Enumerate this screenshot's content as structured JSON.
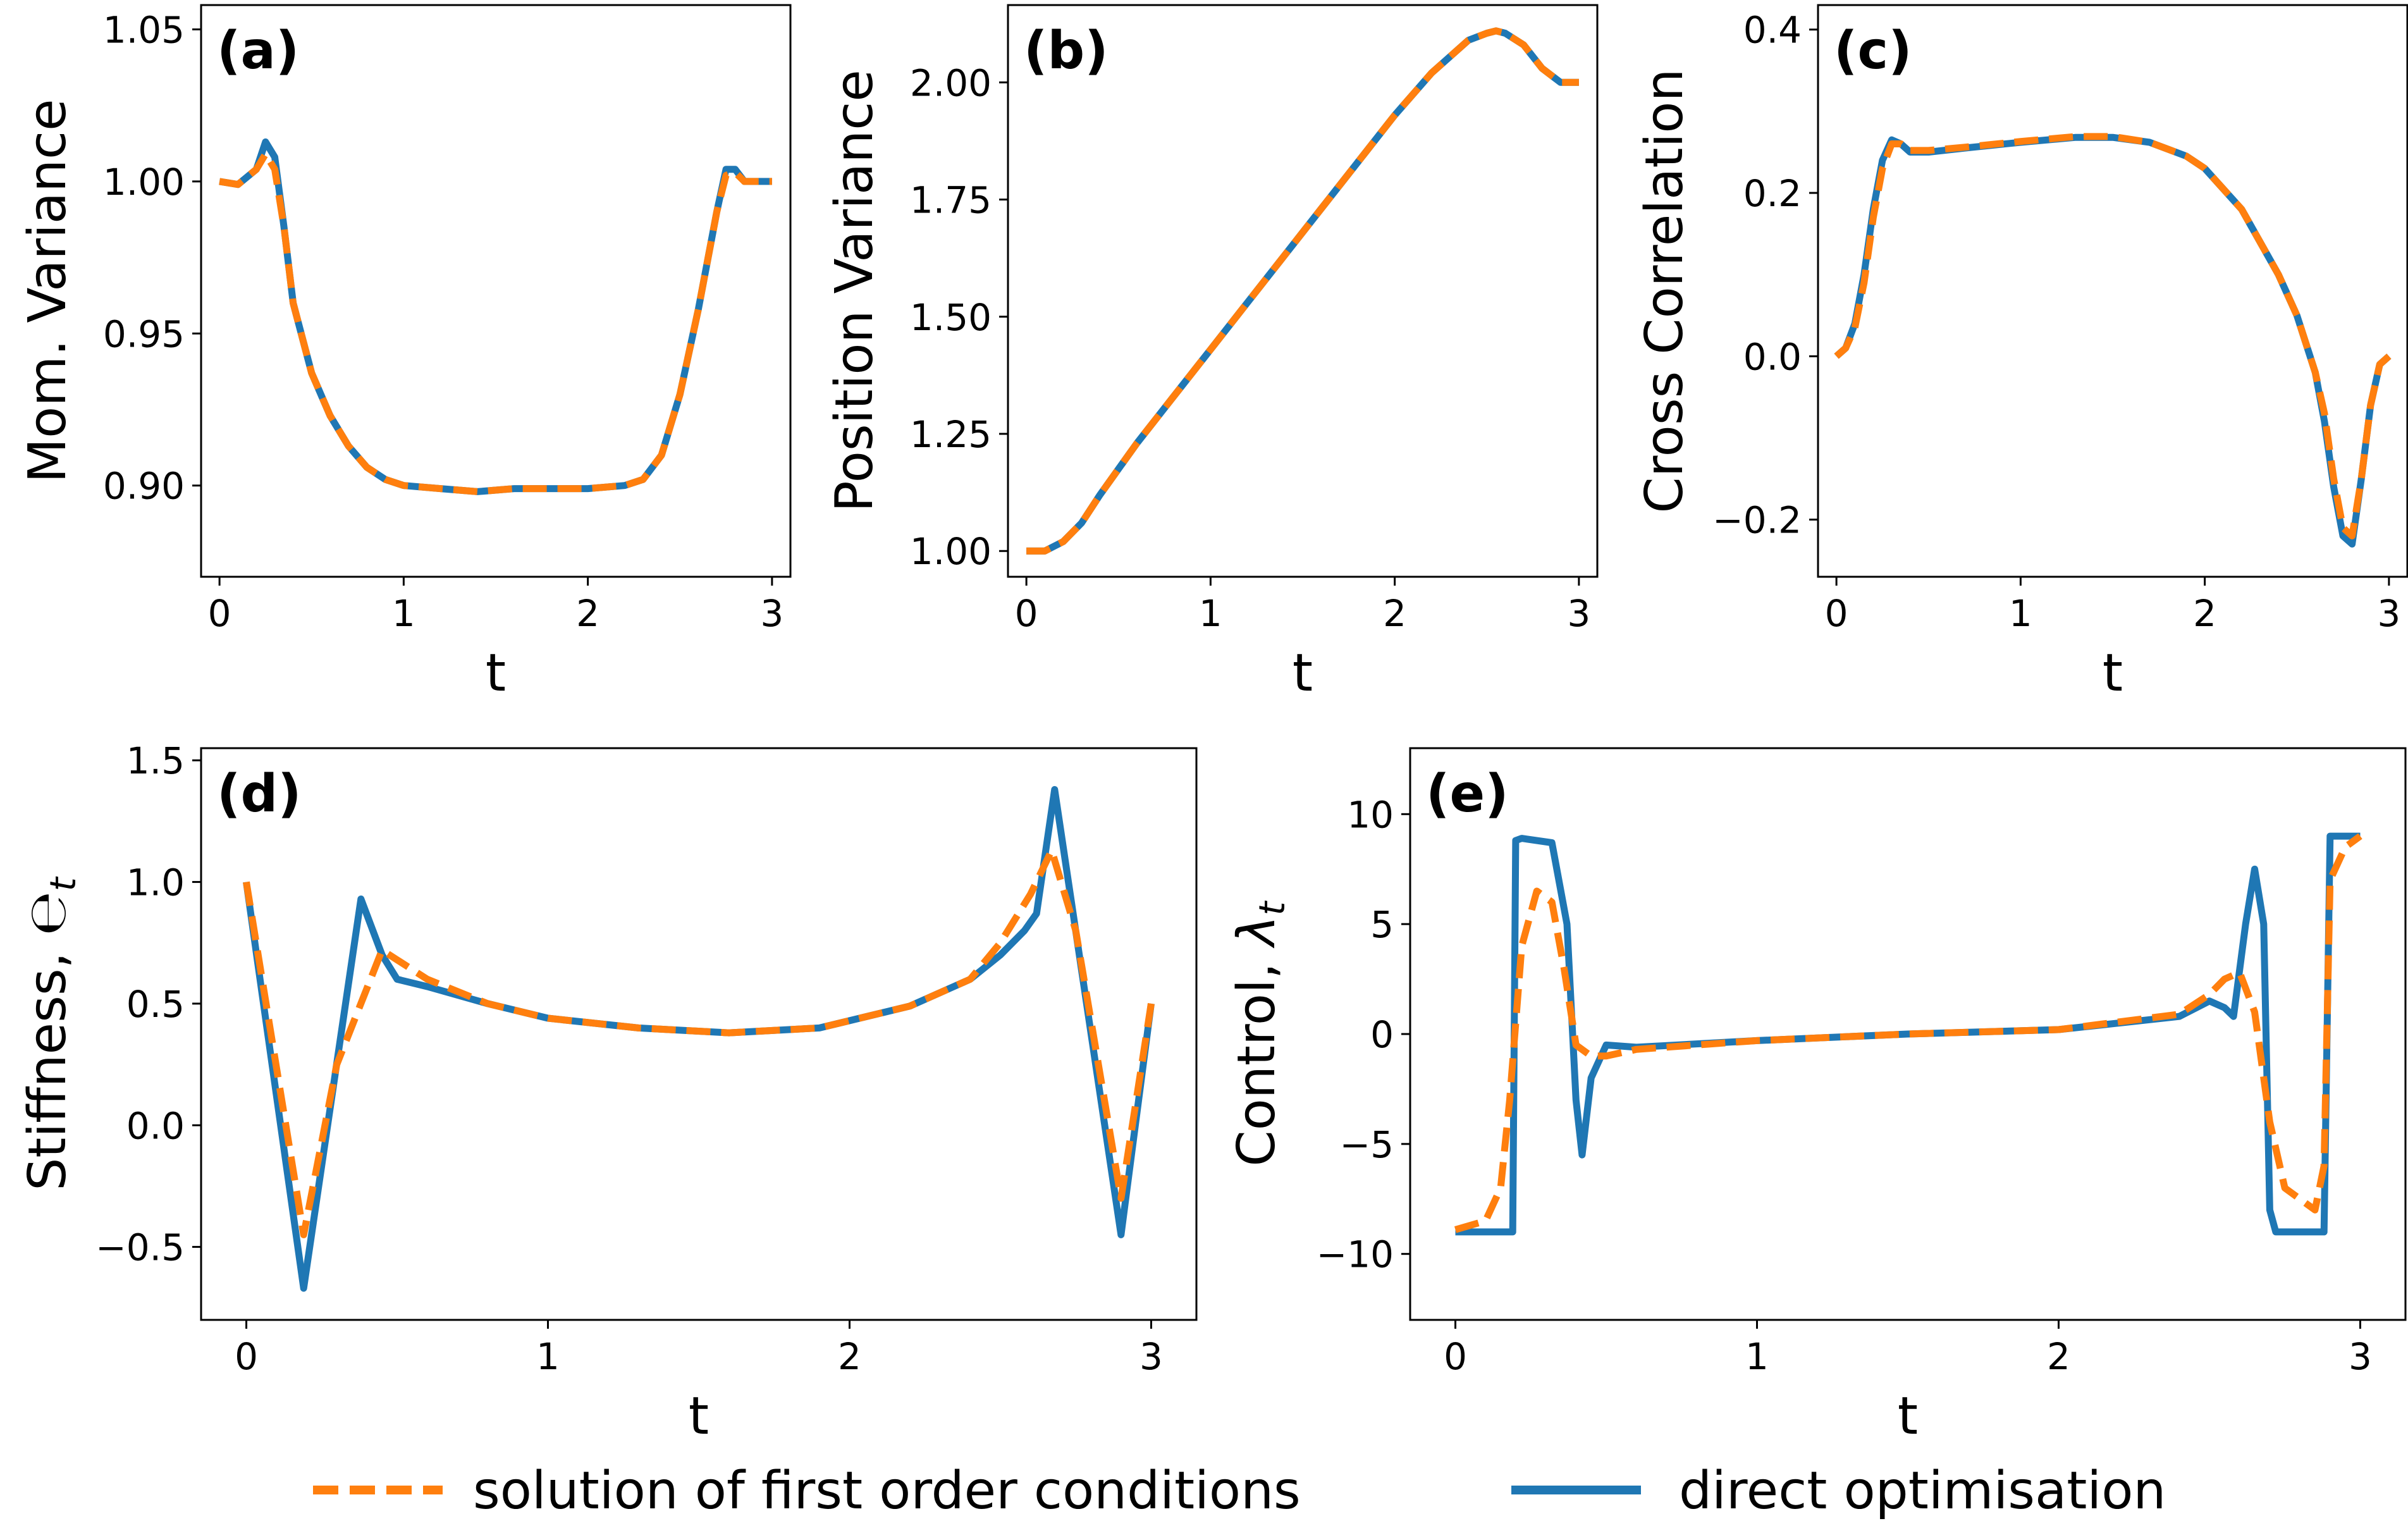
{
  "colors": {
    "dashed": "#ff7f0e",
    "solid": "#1f77b4"
  },
  "legend": {
    "dashed_label": "solution of first order conditions",
    "solid_label": "direct optimisation"
  },
  "chart_data": [
    {
      "type": "line",
      "panel": "(a)",
      "xlabel": "t",
      "ylabel": "Mom. Variance",
      "xlim": [
        -0.1,
        3.1
      ],
      "ylim": [
        0.87,
        1.058
      ],
      "xticks": [
        0,
        1,
        2,
        3
      ],
      "xtick_labels": [
        "0",
        "1",
        "2",
        "3"
      ],
      "yticks": [
        0.9,
        0.95,
        1.0,
        1.05
      ],
      "ytick_labels": [
        "0.90",
        "0.95",
        "1.00",
        "1.05"
      ],
      "series": [
        {
          "name": "direct optimisation",
          "style": "solid",
          "x": [
            0,
            0.1,
            0.2,
            0.25,
            0.3,
            0.35,
            0.4,
            0.5,
            0.6,
            0.7,
            0.8,
            0.9,
            1.0,
            1.2,
            1.4,
            1.6,
            1.8,
            2.0,
            2.2,
            2.3,
            2.4,
            2.5,
            2.6,
            2.7,
            2.75,
            2.8,
            2.85,
            2.9,
            2.95,
            3.0
          ],
          "y": [
            1.0,
            0.999,
            1.004,
            1.013,
            1.008,
            0.985,
            0.96,
            0.937,
            0.923,
            0.913,
            0.906,
            0.902,
            0.9,
            0.899,
            0.898,
            0.899,
            0.899,
            0.899,
            0.9,
            0.902,
            0.91,
            0.93,
            0.958,
            0.99,
            1.004,
            1.004,
            1.0,
            1.0,
            1.0,
            1.0
          ]
        },
        {
          "name": "solution of first order conditions",
          "style": "dashed",
          "x": [
            0,
            0.1,
            0.2,
            0.25,
            0.3,
            0.35,
            0.4,
            0.5,
            0.6,
            0.7,
            0.8,
            0.9,
            1.0,
            1.2,
            1.4,
            1.6,
            1.8,
            2.0,
            2.2,
            2.3,
            2.4,
            2.5,
            2.6,
            2.7,
            2.75,
            2.8,
            2.85,
            2.9,
            2.95,
            3.0
          ],
          "y": [
            1.0,
            0.999,
            1.004,
            1.009,
            1.004,
            0.985,
            0.96,
            0.937,
            0.923,
            0.913,
            0.906,
            0.902,
            0.9,
            0.899,
            0.898,
            0.899,
            0.899,
            0.899,
            0.9,
            0.902,
            0.91,
            0.93,
            0.958,
            0.99,
            1.002,
            1.003,
            1.0,
            1.0,
            1.0,
            1.0
          ]
        }
      ]
    },
    {
      "type": "line",
      "panel": "(b)",
      "xlabel": "t",
      "ylabel": "Position Variance",
      "xlim": [
        -0.1,
        3.1
      ],
      "ylim": [
        0.945,
        2.165
      ],
      "xticks": [
        0,
        1,
        2,
        3
      ],
      "xtick_labels": [
        "0",
        "1",
        "2",
        "3"
      ],
      "yticks": [
        1.0,
        1.25,
        1.5,
        1.75,
        2.0
      ],
      "ytick_labels": [
        "1.00",
        "1.25",
        "1.50",
        "1.75",
        "2.00"
      ],
      "series": [
        {
          "name": "direct optimisation",
          "style": "solid",
          "x": [
            0,
            0.1,
            0.2,
            0.3,
            0.4,
            0.6,
            0.8,
            1.0,
            1.2,
            1.4,
            1.6,
            1.8,
            2.0,
            2.2,
            2.4,
            2.5,
            2.55,
            2.6,
            2.7,
            2.8,
            2.9,
            3.0
          ],
          "y": [
            1.0,
            1.0,
            1.02,
            1.06,
            1.12,
            1.23,
            1.33,
            1.43,
            1.53,
            1.63,
            1.73,
            1.83,
            1.93,
            2.02,
            2.09,
            2.105,
            2.11,
            2.105,
            2.08,
            2.03,
            2.0,
            2.0
          ]
        },
        {
          "name": "solution of first order conditions",
          "style": "dashed",
          "x": [
            0,
            0.1,
            0.2,
            0.3,
            0.4,
            0.6,
            0.8,
            1.0,
            1.2,
            1.4,
            1.6,
            1.8,
            2.0,
            2.2,
            2.4,
            2.5,
            2.55,
            2.6,
            2.7,
            2.8,
            2.9,
            3.0
          ],
          "y": [
            1.0,
            1.0,
            1.02,
            1.06,
            1.12,
            1.23,
            1.33,
            1.43,
            1.53,
            1.63,
            1.73,
            1.83,
            1.93,
            2.02,
            2.09,
            2.105,
            2.11,
            2.105,
            2.08,
            2.03,
            2.0,
            2.0
          ]
        }
      ]
    },
    {
      "type": "line",
      "panel": "(c)",
      "xlabel": "t",
      "ylabel": "Cross Correlation",
      "xlim": [
        -0.1,
        3.1
      ],
      "ylim": [
        -0.27,
        0.43
      ],
      "xticks": [
        0,
        1,
        2,
        3
      ],
      "xtick_labels": [
        "0",
        "1",
        "2",
        "3"
      ],
      "yticks": [
        -0.2,
        0.0,
        0.2,
        0.4
      ],
      "ytick_labels": [
        "−0.2",
        "0.0",
        "0.2",
        "0.4"
      ],
      "series": [
        {
          "name": "direct optimisation",
          "style": "solid",
          "x": [
            0,
            0.05,
            0.1,
            0.15,
            0.2,
            0.25,
            0.3,
            0.35,
            0.4,
            0.5,
            0.7,
            1.0,
            1.3,
            1.5,
            1.7,
            1.9,
            2.0,
            2.2,
            2.4,
            2.5,
            2.6,
            2.65,
            2.7,
            2.75,
            2.8,
            2.85,
            2.9,
            2.95,
            3.0
          ],
          "y": [
            0.0,
            0.01,
            0.04,
            0.1,
            0.18,
            0.24,
            0.265,
            0.26,
            0.25,
            0.25,
            0.255,
            0.262,
            0.268,
            0.268,
            0.262,
            0.245,
            0.23,
            0.18,
            0.1,
            0.05,
            -0.02,
            -0.08,
            -0.16,
            -0.22,
            -0.23,
            -0.15,
            -0.06,
            -0.01,
            0.0
          ]
        },
        {
          "name": "solution of first order conditions",
          "style": "dashed",
          "x": [
            0,
            0.05,
            0.1,
            0.15,
            0.2,
            0.25,
            0.3,
            0.35,
            0.4,
            0.5,
            0.7,
            1.0,
            1.3,
            1.5,
            1.7,
            1.9,
            2.0,
            2.2,
            2.4,
            2.5,
            2.6,
            2.65,
            2.7,
            2.75,
            2.8,
            2.85,
            2.9,
            2.95,
            3.0
          ],
          "y": [
            0.0,
            0.01,
            0.035,
            0.09,
            0.17,
            0.23,
            0.26,
            0.26,
            0.252,
            0.252,
            0.256,
            0.263,
            0.269,
            0.269,
            0.262,
            0.245,
            0.23,
            0.18,
            0.1,
            0.05,
            -0.02,
            -0.07,
            -0.15,
            -0.21,
            -0.22,
            -0.15,
            -0.06,
            -0.01,
            0.0
          ]
        }
      ]
    },
    {
      "type": "line",
      "panel": "(d)",
      "xlabel": "t",
      "ylabel_main": "Stiffness, ",
      "ylabel_symbol": "℮t",
      "xlim": [
        -0.15,
        3.15
      ],
      "ylim": [
        -0.8,
        1.55
      ],
      "xticks": [
        0,
        1,
        2,
        3
      ],
      "xtick_labels": [
        "0",
        "1",
        "2",
        "3"
      ],
      "yticks": [
        -0.5,
        0.0,
        0.5,
        1.0,
        1.5
      ],
      "ytick_labels": [
        "−0.5",
        "0.0",
        "0.5",
        "1.0",
        "1.5"
      ],
      "series": [
        {
          "name": "direct optimisation",
          "style": "solid",
          "x": [
            0,
            0.19,
            0.38,
            0.45,
            0.5,
            0.6,
            0.8,
            1.0,
            1.3,
            1.6,
            1.9,
            2.2,
            2.4,
            2.5,
            2.58,
            2.62,
            2.68,
            2.9,
            3.0
          ],
          "y": [
            1.0,
            -0.67,
            0.93,
            0.7,
            0.6,
            0.57,
            0.5,
            0.44,
            0.4,
            0.38,
            0.4,
            0.49,
            0.6,
            0.7,
            0.8,
            0.87,
            1.38,
            -0.45,
            0.5
          ]
        },
        {
          "name": "solution of first order conditions",
          "style": "dashed",
          "x": [
            0,
            0.19,
            0.3,
            0.45,
            0.5,
            0.6,
            0.8,
            1.0,
            1.3,
            1.6,
            1.9,
            2.2,
            2.4,
            2.5,
            2.6,
            2.67,
            2.75,
            2.9,
            3.0
          ],
          "y": [
            1.0,
            -0.45,
            0.25,
            0.72,
            0.68,
            0.6,
            0.5,
            0.44,
            0.4,
            0.38,
            0.4,
            0.49,
            0.6,
            0.75,
            0.95,
            1.13,
            0.8,
            -0.3,
            0.5
          ]
        }
      ]
    },
    {
      "type": "line",
      "panel": "(e)",
      "xlabel": "t",
      "ylabel_main": "Control, ",
      "ylabel_symbol": "λt",
      "xlim": [
        -0.15,
        3.15
      ],
      "ylim": [
        -13,
        13
      ],
      "xticks": [
        0,
        1,
        2,
        3
      ],
      "xtick_labels": [
        "0",
        "1",
        "2",
        "3"
      ],
      "yticks": [
        -10,
        -5,
        0,
        5,
        10
      ],
      "ytick_labels": [
        "−10",
        "−5",
        "0",
        "5",
        "10"
      ],
      "series": [
        {
          "name": "direct optimisation",
          "style": "solid",
          "x": [
            0,
            0.19,
            0.2,
            0.22,
            0.32,
            0.37,
            0.4,
            0.42,
            0.45,
            0.5,
            0.6,
            1.0,
            1.5,
            2.0,
            2.4,
            2.5,
            2.55,
            2.58,
            2.62,
            2.65,
            2.68,
            2.7,
            2.72,
            2.88,
            2.9,
            3.0
          ],
          "y": [
            -9,
            -9,
            8.8,
            8.9,
            8.7,
            5,
            -3,
            -5.5,
            -2,
            -0.5,
            -0.6,
            -0.3,
            0,
            0.2,
            0.8,
            1.5,
            1.2,
            0.8,
            5,
            7.5,
            5,
            -8,
            -9,
            -9,
            9,
            9
          ]
        },
        {
          "name": "solution of first order conditions",
          "style": "dashed",
          "x": [
            0,
            0.1,
            0.15,
            0.18,
            0.22,
            0.27,
            0.32,
            0.36,
            0.4,
            0.45,
            0.5,
            0.6,
            1.0,
            1.5,
            2.0,
            2.4,
            2.5,
            2.55,
            2.6,
            2.65,
            2.7,
            2.75,
            2.85,
            2.88,
            2.9,
            2.95,
            3.0
          ],
          "y": [
            -8.9,
            -8.5,
            -7,
            -3,
            4,
            6.5,
            6,
            3,
            -0.5,
            -1,
            -1,
            -0.7,
            -0.3,
            0,
            0.2,
            0.9,
            1.8,
            2.5,
            2.8,
            1,
            -4,
            -7,
            -8,
            -6,
            7,
            8.5,
            9
          ]
        }
      ]
    }
  ]
}
